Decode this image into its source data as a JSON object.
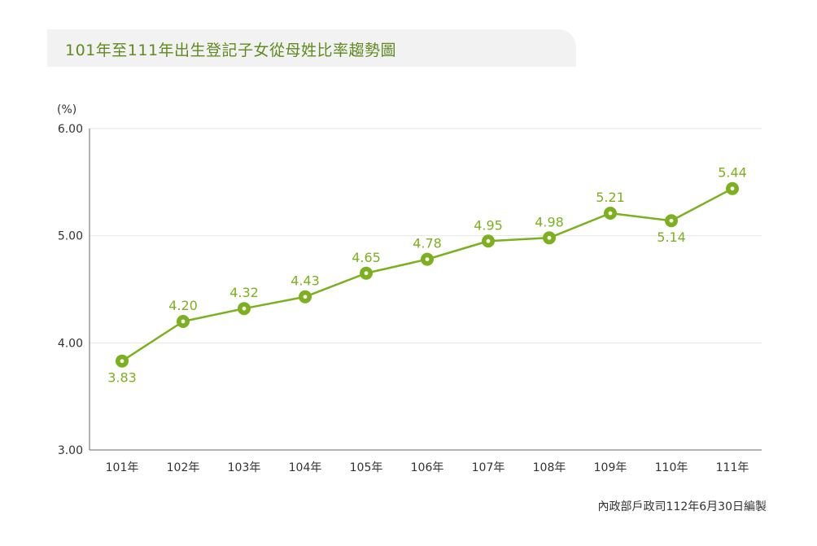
{
  "title": "101年至111年出生登記子女從母姓比率趨勢圖",
  "source_note": "內政部戶政司112年6月30日編製",
  "colors": {
    "line": "#7cb01e",
    "title_text": "#5f8a1f",
    "title_bg": "#f2f2f2",
    "grid": "#e6e6e6",
    "axis": "#666666"
  },
  "chart_data": {
    "type": "line",
    "title": "101年至111年出生登記子女從母姓比率趨勢圖",
    "xlabel": "",
    "ylabel": "(%)",
    "ylim": [
      3.0,
      6.0
    ],
    "yticks": [
      "6.00",
      "5.00",
      "4.00",
      "3.00"
    ],
    "categories": [
      "101年",
      "102年",
      "103年",
      "104年",
      "105年",
      "106年",
      "107年",
      "108年",
      "109年",
      "110年",
      "111年"
    ],
    "values": [
      3.83,
      4.2,
      4.32,
      4.43,
      4.65,
      4.78,
      4.95,
      4.98,
      5.21,
      5.14,
      5.44
    ],
    "value_labels": [
      "3.83",
      "4.20",
      "4.32",
      "4.43",
      "4.65",
      "4.78",
      "4.95",
      "4.98",
      "5.21",
      "5.14",
      "5.44"
    ],
    "label_positions": [
      "below",
      "above",
      "above",
      "above",
      "above",
      "above",
      "above",
      "above",
      "above",
      "below",
      "above"
    ],
    "grid": true,
    "legend": "none"
  }
}
